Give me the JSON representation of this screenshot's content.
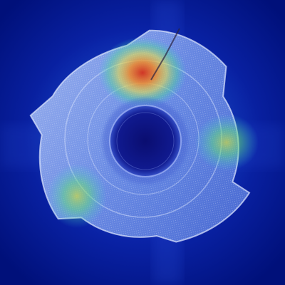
{
  "image": {
    "subject": "",
    "palette": {
      "background_deep": "#00106e",
      "background_mid": "#0a2fb8",
      "part_body": "#6f8fe6",
      "part_highlight": "#c9d8ff",
      "bore": "#0a0f7a",
      "hot_red": "#d0301f",
      "hot_orange": "#f08a2a",
      "warm_yellow": "#e6e04a",
      "warm_green": "#4fe08a",
      "cyan": "#3fd0d8"
    }
  }
}
